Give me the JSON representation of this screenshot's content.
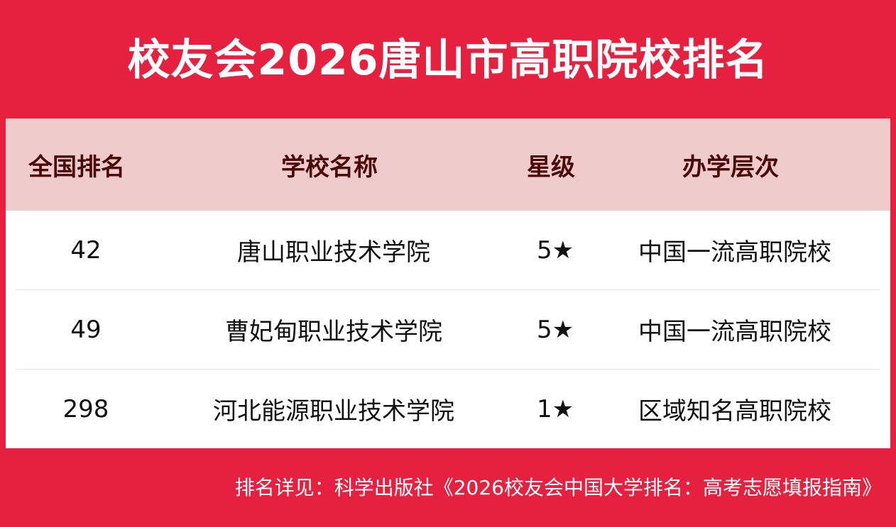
{
  "title": "校友会2026唐山市高职院校排名",
  "colors": {
    "brand_red": "#e5213f",
    "header_bg": "#f0cbcb",
    "header_text": "#4a0808"
  },
  "table": {
    "headers": [
      "全国排名",
      "学校名称",
      "星级",
      "办学层次"
    ],
    "rows": [
      [
        "42",
        "唐山职业技术学院",
        "5★",
        "中国一流高职院校"
      ],
      [
        "49",
        "曹妃甸职业技术学院",
        "5★",
        "中国一流高职院校"
      ],
      [
        "298",
        "河北能源职业技术学院",
        "1★",
        "区域知名高职院校"
      ]
    ]
  },
  "footer": "排名详见：科学出版社《2026校友会中国大学排名：高考志愿填报指南》"
}
